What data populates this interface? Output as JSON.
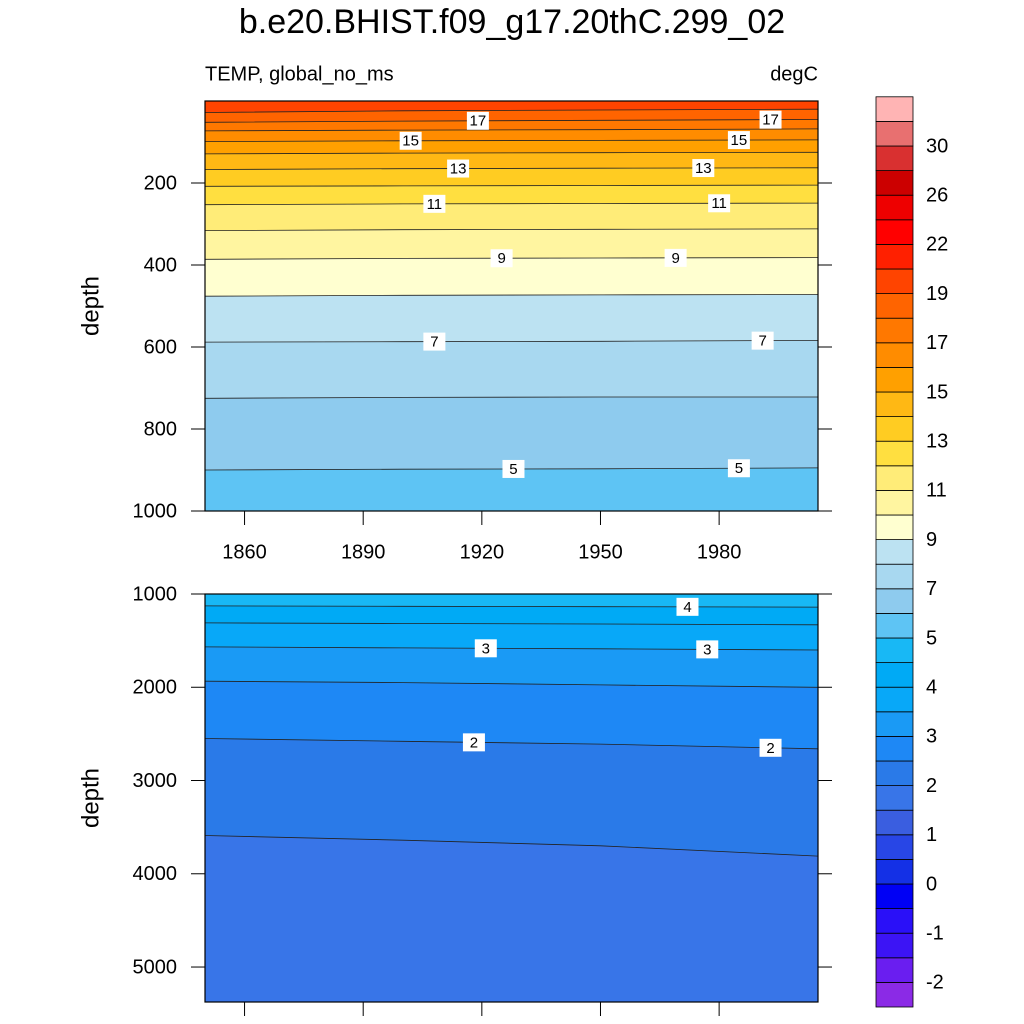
{
  "chart_data": {
    "type": "contour",
    "title": "b.e20.BHIST.f09_g17.20thC.299_02",
    "subtitle_left": "TEMP, global_no_ms",
    "subtitle_right": "degC",
    "colorbar": {
      "levels": [
        -2,
        -1.5,
        -1,
        -0.5,
        0,
        0.5,
        1,
        1.5,
        2,
        2.5,
        3,
        3.5,
        4,
        4.5,
        5,
        6,
        7,
        8,
        9,
        10,
        11,
        12,
        13,
        14,
        15,
        16,
        17,
        18,
        19,
        20,
        22,
        24,
        26,
        28,
        30,
        32
      ],
      "colors": [
        "#8b2ae6",
        "#6a1ef0",
        "#3c14f5",
        "#2a10f8",
        "#0000f5",
        "#1430e6",
        "#2846e6",
        "#3a5ee0",
        "#3875e8",
        "#2a7ae8",
        "#1e88f5",
        "#1a9af5",
        "#08a8f8",
        "#00aaf5",
        "#18b8f5",
        "#5ec4f4",
        "#8ecbee",
        "#a8d8f0",
        "#bce2f2",
        "#ffffd0",
        "#fff5a0",
        "#ffec78",
        "#ffdf40",
        "#ffcc22",
        "#ffb814",
        "#ffa000",
        "#ff8c00",
        "#ff7800",
        "#ff6400",
        "#ff4400",
        "#ff2000",
        "#ff0000",
        "#ee0000",
        "#cc0000",
        "#d93030",
        "#e87070",
        "#ffb4b4"
      ],
      "ticks": [
        -2,
        -1,
        0,
        1,
        2,
        3,
        4,
        5,
        7,
        9,
        11,
        13,
        15,
        17,
        19,
        22,
        26,
        30
      ]
    },
    "panels": [
      {
        "ylabel": "depth",
        "xlim": [
          1850,
          2005
        ],
        "ylim": [
          0,
          1000
        ],
        "xticks": [
          1860,
          1890,
          1920,
          1950,
          1980
        ],
        "xtick_labels": true,
        "yticks": [
          200,
          400,
          600,
          800,
          1000
        ],
        "x": [
          1850,
          1900,
          1950,
          2005
        ],
        "contours": [
          {
            "level": 18,
            "depths": [
              28,
              24,
              22,
              20
            ]
          },
          {
            "level": 17,
            "depths": [
              52,
              49,
              47,
              45
            ]
          },
          {
            "level": 16,
            "depths": [
              73,
              71,
              70,
              68
            ]
          },
          {
            "level": 15,
            "depths": [
              99,
              97,
              96,
              95
            ]
          },
          {
            "level": 14,
            "depths": [
              129,
              127,
              126,
              125
            ]
          },
          {
            "level": 13,
            "depths": [
              167,
              165,
              164,
              163
            ]
          },
          {
            "level": 12,
            "depths": [
              208,
              207,
              206,
              205
            ]
          },
          {
            "level": 11,
            "depths": [
              253,
              251,
              250,
              249
            ]
          },
          {
            "level": 10,
            "depths": [
              316,
              314,
              313,
              312
            ]
          },
          {
            "level": 9,
            "depths": [
              386,
              384,
              383,
              382
            ]
          },
          {
            "level": 8,
            "depths": [
              476,
              474,
              473,
              472
            ]
          },
          {
            "level": 7,
            "depths": [
              588,
              587,
              586,
              584
            ]
          },
          {
            "level": 6,
            "depths": [
              725,
              723,
              722,
              722
            ]
          },
          {
            "level": 5,
            "depths": [
              900,
              898,
              897,
              895
            ]
          }
        ]
      },
      {
        "ylabel": "depth",
        "xlim": [
          1850,
          2005
        ],
        "ylim": [
          1000,
          5375
        ],
        "xticks": [
          1860,
          1890,
          1920,
          1950,
          1980
        ],
        "xtick_labels": false,
        "yticks": [
          1000,
          2000,
          3000,
          4000,
          5000
        ],
        "x": [
          1850,
          1900,
          1950,
          2005
        ],
        "contours": [
          {
            "level": 4,
            "depths": [
              1128,
              1132,
              1136,
              1140
            ]
          },
          {
            "level": 3.5,
            "depths": [
              1310,
              1316,
              1322,
              1330
            ]
          },
          {
            "level": 3,
            "depths": [
              1567,
              1578,
              1588,
              1600
            ]
          },
          {
            "level": 2.5,
            "depths": [
              1935,
              1950,
              1975,
              2000
            ]
          },
          {
            "level": 2,
            "depths": [
              2550,
              2580,
              2610,
              2660
            ]
          },
          {
            "level": 1.5,
            "depths": [
              3590,
              3640,
              3700,
              3810
            ]
          }
        ]
      }
    ]
  }
}
